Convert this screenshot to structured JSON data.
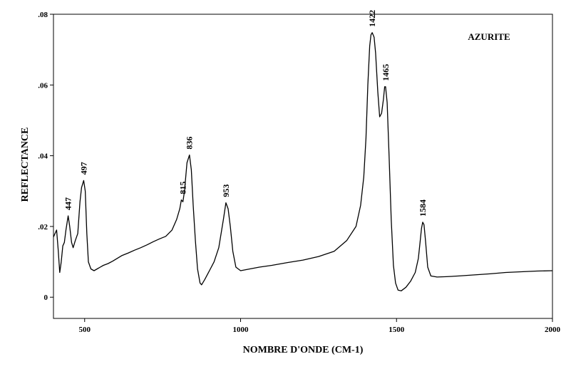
{
  "chart_data": {
    "type": "line",
    "title": "AZURITE",
    "xlabel": "NOMBRE D'ONDE (CM-1)",
    "ylabel": "REFLECTANCE",
    "xlim": [
      400,
      2000
    ],
    "ylim": [
      -0.006,
      0.08
    ],
    "x_ticks": [
      500,
      1000,
      1500,
      2000
    ],
    "x_tick_labels": [
      "500",
      "1000",
      "1500",
      "2000"
    ],
    "y_ticks": [
      0,
      0.02,
      0.04,
      0.06,
      0.08
    ],
    "y_tick_labels": [
      "0",
      ".02",
      ".04",
      ".06",
      ".08"
    ],
    "grid": false,
    "series": [
      {
        "color": "#000000",
        "x": [
          400,
          405,
          410,
          415,
          420,
          425,
          430,
          435,
          440,
          447,
          452,
          458,
          463,
          470,
          478,
          485,
          490,
          497,
          502,
          507,
          512,
          520,
          530,
          540,
          550,
          560,
          575,
          590,
          605,
          620,
          640,
          660,
          680,
          700,
          720,
          740,
          760,
          780,
          795,
          805,
          810,
          815,
          820,
          828,
          836,
          842,
          848,
          855,
          862,
          870,
          875,
          885,
          900,
          915,
          930,
          945,
          953,
          960,
          967,
          975,
          985,
          1000,
          1030,
          1060,
          1100,
          1150,
          1200,
          1250,
          1300,
          1340,
          1370,
          1385,
          1395,
          1402,
          1408,
          1414,
          1418,
          1422,
          1428,
          1433,
          1440,
          1446,
          1452,
          1458,
          1462,
          1465,
          1470,
          1476,
          1483,
          1490,
          1497,
          1505,
          1515,
          1530,
          1545,
          1560,
          1570,
          1576,
          1580,
          1584,
          1588,
          1593,
          1600,
          1610,
          1630,
          1660,
          1700,
          1750,
          1800,
          1850,
          1900,
          1950,
          2000
        ],
        "y": [
          0.017,
          0.018,
          0.019,
          0.0135,
          0.007,
          0.01,
          0.0145,
          0.0155,
          0.019,
          0.023,
          0.02,
          0.0155,
          0.014,
          0.016,
          0.018,
          0.027,
          0.031,
          0.033,
          0.03,
          0.018,
          0.01,
          0.008,
          0.0075,
          0.008,
          0.0085,
          0.009,
          0.0095,
          0.0102,
          0.011,
          0.0118,
          0.0125,
          0.0133,
          0.014,
          0.0148,
          0.0157,
          0.0165,
          0.0172,
          0.019,
          0.022,
          0.025,
          0.0275,
          0.027,
          0.03,
          0.038,
          0.0402,
          0.036,
          0.026,
          0.016,
          0.008,
          0.004,
          0.0035,
          0.005,
          0.0075,
          0.01,
          0.014,
          0.022,
          0.0267,
          0.025,
          0.02,
          0.013,
          0.0085,
          0.0075,
          0.008,
          0.0085,
          0.009,
          0.0098,
          0.0105,
          0.0115,
          0.013,
          0.016,
          0.02,
          0.026,
          0.034,
          0.045,
          0.06,
          0.071,
          0.0742,
          0.0748,
          0.0735,
          0.069,
          0.058,
          0.051,
          0.052,
          0.056,
          0.0595,
          0.0595,
          0.055,
          0.04,
          0.022,
          0.009,
          0.004,
          0.002,
          0.0018,
          0.0028,
          0.0045,
          0.007,
          0.011,
          0.016,
          0.0195,
          0.0212,
          0.0205,
          0.016,
          0.0085,
          0.006,
          0.0057,
          0.0058,
          0.006,
          0.0063,
          0.0066,
          0.007,
          0.0072,
          0.0074,
          0.0075
        ]
      }
    ],
    "annotations": [
      {
        "text": "447",
        "x": 447,
        "y": 0.023
      },
      {
        "text": "497",
        "x": 497,
        "y": 0.033
      },
      {
        "text": "815",
        "x": 815,
        "y": 0.0275
      },
      {
        "text": "836",
        "x": 836,
        "y": 0.0402
      },
      {
        "text": "953",
        "x": 953,
        "y": 0.0267
      },
      {
        "text": "1422",
        "x": 1422,
        "y": 0.0748
      },
      {
        "text": "1465",
        "x": 1465,
        "y": 0.0595
      },
      {
        "text": "1584",
        "x": 1584,
        "y": 0.0212
      }
    ]
  }
}
